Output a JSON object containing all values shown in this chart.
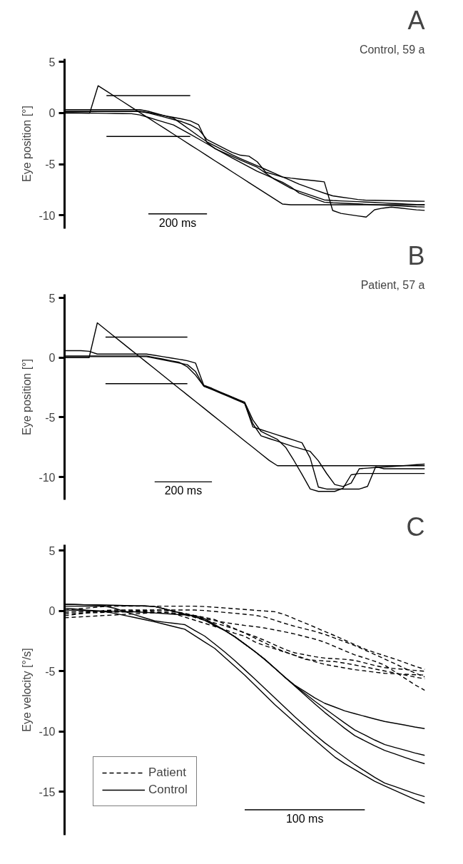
{
  "chart_data": [
    {
      "type": "line",
      "title": "A",
      "subtitle": "Control, 59 a",
      "ylabel": "Eye position [°]",
      "ylim": [
        -11.3,
        5.3
      ],
      "yticks": [
        5,
        0,
        -5,
        -10
      ],
      "tick_labels": "y",
      "grid": false,
      "legend": false,
      "line_style": "solid",
      "categories": [
        null,
        null,
        null,
        null,
        null,
        null,
        null,
        null,
        null,
        null,
        null,
        null,
        null,
        null,
        null,
        null,
        null,
        null,
        null,
        null,
        null,
        null,
        null,
        null,
        null,
        null,
        null,
        null,
        null,
        null,
        null,
        null,
        null,
        null,
        null,
        null,
        null,
        null,
        null,
        null,
        null,
        null,
        null,
        null
      ],
      "annotations": [
        "200 ms"
      ],
      "series": [
        {
          "color": "#000000",
          "values": [
            null,
            null,
            null,
            null,
            null,
            null,
            null,
            null,
            null,
            null,
            -9.85,
            -9.85,
            -9.85,
            -9.85,
            -9.85,
            -9.85,
            -9.85,
            -9.85,
            null,
            null,
            null,
            null,
            null,
            null,
            null,
            null,
            null,
            null,
            null,
            null,
            null,
            null,
            null,
            null,
            null,
            null,
            null,
            null,
            null,
            null,
            null,
            null,
            null,
            null
          ]
        },
        {
          "color": "#000000",
          "values": [
            null,
            null,
            null,
            null,
            null,
            1.71,
            1.71,
            1.71,
            1.71,
            1.71,
            1.71,
            1.71,
            1.71,
            1.71,
            1.71,
            1.71,
            null,
            null,
            null,
            null,
            null,
            null,
            null,
            null,
            null,
            null,
            null,
            null,
            null,
            null,
            null,
            null,
            null,
            null,
            null,
            null,
            null,
            null,
            null,
            null,
            null,
            null,
            null,
            null
          ]
        },
        {
          "color": "#000000",
          "values": [
            null,
            null,
            null,
            null,
            null,
            -2.29,
            -2.29,
            -2.29,
            -2.29,
            -2.29,
            -2.29,
            -2.29,
            -2.29,
            -2.29,
            -2.29,
            -2.29,
            null,
            null,
            null,
            null,
            null,
            null,
            null,
            null,
            null,
            null,
            null,
            null,
            null,
            null,
            null,
            null,
            null,
            null,
            null,
            null,
            null,
            null,
            null,
            null,
            null,
            null,
            null,
            null
          ]
        },
        {
          "color": "#000000",
          "values": [
            0,
            0,
            0,
            0,
            2.67,
            2.15,
            1.62,
            1.1,
            0.57,
            0.04,
            -0.48,
            -1.01,
            -1.53,
            -2.06,
            -2.58,
            -3.11,
            -3.63,
            -4.16,
            -4.69,
            -5.21,
            -5.74,
            -6.26,
            -6.79,
            -7.31,
            -7.84,
            -8.36,
            -8.89,
            -8.96,
            -8.96,
            -8.96,
            -8.96,
            -8.96,
            -8.96,
            -8.96,
            -8.96,
            -8.96,
            -8.96,
            -8.96,
            -8.96,
            -8.96,
            -8.96,
            -8.96,
            -8.96,
            -8.96
          ]
        },
        {
          "color": "#000000",
          "values": [
            0.33,
            0.33,
            0.33,
            0.33,
            0.33,
            0.33,
            0.33,
            0.33,
            0.33,
            0.33,
            0.17,
            -0.05,
            -0.27,
            -0.5,
            -1.07,
            -1.66,
            -2.25,
            -2.81,
            -3.23,
            -3.65,
            -4.07,
            -4.45,
            -4.81,
            -5.16,
            -5.51,
            -5.87,
            -6.23,
            -6.59,
            -6.95,
            -7.24,
            -7.54,
            -7.83,
            -8.09,
            -8.21,
            -8.33,
            -8.45,
            -8.52,
            -8.53,
            -8.55,
            -8.56,
            -8.58,
            -8.6,
            -8.61,
            -8.62
          ]
        },
        {
          "color": "#000000",
          "values": [
            0.16,
            0.16,
            0.16,
            0.16,
            0.16,
            0.16,
            0.16,
            0.16,
            0.16,
            0.16,
            0.01,
            -0.2,
            -0.41,
            -0.63,
            -0.84,
            -1.15,
            -1.59,
            -2.59,
            -3.01,
            -3.43,
            -3.85,
            -4.12,
            -4.21,
            -4.76,
            -5.77,
            -6.01,
            -6.25,
            -6.36,
            -6.45,
            -6.54,
            -6.63,
            -6.72,
            -9.52,
            -9.81,
            -9.93,
            -10.05,
            -10.17,
            -9.45,
            -9.29,
            -9.19,
            -9.28,
            -9.37,
            -9.46,
            -9.51
          ]
        },
        {
          "color": "#000000",
          "values": [
            0.04,
            0.03,
            0.02,
            0.0,
            -0.01,
            -0.03,
            -0.04,
            -0.05,
            -0.06,
            -0.18,
            -0.42,
            -0.67,
            -0.92,
            -1.16,
            -1.61,
            -2.07,
            -2.53,
            -3.0,
            -3.48,
            -3.93,
            -4.38,
            -4.82,
            -5.26,
            -5.69,
            -6.05,
            -6.41,
            -6.76,
            -7.22,
            -7.82,
            -8.12,
            -8.42,
            -8.71,
            -8.77,
            -8.81,
            -8.84,
            -8.88,
            -8.92,
            -8.96,
            -9.0,
            -9.04,
            -9.08,
            -9.12,
            -9.16,
            -9.18
          ]
        },
        {
          "color": "#000000",
          "values": [
            0.16,
            0.16,
            0.16,
            0.16,
            0.16,
            0.16,
            0.16,
            0.16,
            0.16,
            0.16,
            0.05,
            -0.11,
            -0.27,
            -0.42,
            -0.58,
            -0.76,
            -1.15,
            -2.88,
            -3.5,
            -3.87,
            -4.23,
            -4.59,
            -4.95,
            -5.3,
            -5.87,
            -6.44,
            -6.9,
            -7.35,
            -7.65,
            -7.93,
            -8.21,
            -8.49,
            -8.55,
            -8.59,
            -8.62,
            -8.66,
            -8.7,
            -8.74,
            -8.78,
            -8.82,
            -8.86,
            -8.9,
            -8.94,
            -8.96
          ]
        }
      ]
    },
    {
      "type": "line",
      "title": "B",
      "subtitle": "Patient, 57 a",
      "ylabel": "Eye position [°]",
      "ylim": [
        -11.9,
        5.3
      ],
      "yticks": [
        5,
        0,
        -5,
        -10
      ],
      "tick_labels": "y",
      "grid": false,
      "legend": false,
      "line_style": "solid",
      "categories": [
        null,
        null,
        null,
        null,
        null,
        null,
        null,
        null,
        null,
        null,
        null,
        null,
        null,
        null,
        null,
        null,
        null,
        null,
        null,
        null,
        null,
        null,
        null,
        null,
        null,
        null,
        null,
        null,
        null,
        null,
        null,
        null,
        null,
        null,
        null,
        null,
        null,
        null,
        null,
        null,
        null,
        null,
        null,
        null,
        null
      ],
      "annotations": [
        "200 ms"
      ],
      "series": [
        {
          "color": "#000000",
          "values": [
            null,
            null,
            null,
            null,
            null,
            null,
            null,
            null,
            null,
            null,
            null,
            -10.4,
            -10.4,
            -10.4,
            -10.4,
            -10.4,
            -10.4,
            -10.4,
            -10.4,
            null,
            null,
            null,
            null,
            null,
            null,
            null,
            null,
            null,
            null,
            null,
            null,
            null,
            null,
            null,
            null,
            null,
            null,
            null,
            null,
            null,
            null,
            null,
            null,
            null,
            null
          ]
        },
        {
          "color": "#000000",
          "values": [
            null,
            null,
            null,
            null,
            null,
            1.72,
            1.72,
            1.72,
            1.72,
            1.72,
            1.72,
            1.72,
            1.72,
            1.72,
            1.72,
            1.72,
            null,
            null,
            null,
            null,
            null,
            null,
            null,
            null,
            null,
            null,
            null,
            null,
            null,
            null,
            null,
            null,
            null,
            null,
            null,
            null,
            null,
            null,
            null,
            null,
            null,
            null,
            null,
            null,
            null
          ]
        },
        {
          "color": "#000000",
          "values": [
            null,
            null,
            null,
            null,
            null,
            -2.18,
            -2.18,
            -2.18,
            -2.18,
            -2.18,
            -2.18,
            -2.18,
            -2.18,
            -2.18,
            -2.18,
            -2.18,
            null,
            null,
            null,
            null,
            null,
            null,
            null,
            null,
            null,
            null,
            null,
            null,
            null,
            null,
            null,
            null,
            null,
            null,
            null,
            null,
            null,
            null,
            null,
            null,
            null,
            null,
            null,
            null,
            null
          ]
        },
        {
          "color": "#000000",
          "values": [
            0,
            0,
            0,
            0,
            2.91,
            2.36,
            1.81,
            1.26,
            0.71,
            0.16,
            -0.38,
            -0.93,
            -1.48,
            -2.03,
            -2.58,
            -3.13,
            -3.67,
            -4.22,
            -4.77,
            -5.32,
            -5.87,
            -6.42,
            -6.97,
            -7.51,
            -8.06,
            -8.61,
            -9.05,
            -9.05,
            -9.05,
            -9.05,
            -9.05,
            -9.05,
            -9.05,
            -9.05,
            -9.05,
            -9.05,
            -9.05,
            -9.05,
            -9.05,
            -9.05,
            -9.05,
            -9.05,
            -9.05,
            -9.05,
            -9.05
          ]
        },
        {
          "color": "#000000",
          "values": [
            0.58,
            0.58,
            0.58,
            0.53,
            0.3,
            0.3,
            0.3,
            0.3,
            0.3,
            0.3,
            0.3,
            0.19,
            0.08,
            -0.03,
            -0.14,
            -0.26,
            -0.46,
            -2.31,
            -2.57,
            -2.87,
            -3.16,
            -3.46,
            -3.84,
            -5.8,
            -6.03,
            -6.25,
            -6.47,
            -6.69,
            -6.91,
            -7.13,
            -8.4,
            -10.84,
            -11.0,
            -11.0,
            -11.0,
            -11.0,
            -11.0,
            -10.78,
            -9.13,
            -9.3,
            -9.3,
            -9.3,
            -9.3,
            -9.3,
            -9.3
          ]
        },
        {
          "color": "#000000",
          "values": [
            0.08,
            0.08,
            0.08,
            0.08,
            0.08,
            0.08,
            0.08,
            0.08,
            0.08,
            0.08,
            0.08,
            -0.05,
            -0.18,
            -0.32,
            -0.45,
            -0.59,
            -1.17,
            -2.39,
            -2.67,
            -2.96,
            -3.25,
            -3.54,
            -3.83,
            -5.54,
            -6.55,
            -6.78,
            -7.0,
            -7.23,
            -7.46,
            -7.65,
            -7.85,
            -8.64,
            -9.69,
            -10.62,
            -10.79,
            -10.5,
            -9.3,
            -9.25,
            -9.2,
            -9.15,
            -9.11,
            -9.06,
            -9.01,
            -8.96,
            -8.91
          ]
        },
        {
          "color": "#000000",
          "values": [
            0.14,
            0.14,
            0.14,
            0.14,
            0.14,
            0.14,
            0.14,
            0.14,
            0.14,
            0.14,
            0.14,
            0.01,
            -0.12,
            -0.26,
            -0.39,
            -0.77,
            -1.47,
            -2.38,
            -2.65,
            -2.92,
            -3.19,
            -3.46,
            -3.73,
            -5.22,
            -6.18,
            -6.52,
            -6.85,
            -7.51,
            -8.6,
            -9.77,
            -11.0,
            -11.2,
            -11.2,
            -11.2,
            -10.94,
            -9.81,
            -9.7,
            -9.7,
            -9.7,
            -9.7,
            -9.7,
            -9.7,
            -9.7,
            -9.7,
            -9.7
          ]
        }
      ]
    },
    {
      "type": "line",
      "title": "C",
      "ylabel": "Eye velocity [°/s]",
      "ylim": [
        -18.6,
        5.5
      ],
      "yticks": [
        5,
        0,
        -5,
        -10,
        -15
      ],
      "tick_labels": "y",
      "grid": false,
      "legend": "bottom left",
      "categories": [
        null,
        null,
        null,
        null,
        null,
        null,
        null,
        null,
        null,
        null,
        null,
        null,
        null,
        null,
        null,
        null,
        null,
        null,
        null,
        null,
        null,
        null,
        null,
        null,
        null,
        null,
        null,
        null,
        null,
        null,
        null,
        null,
        null,
        null,
        null,
        null,
        null
      ],
      "annotations": [
        "100 ms"
      ],
      "series": [
        {
          "color": "#000000",
          "line_style": "solid",
          "values": [
            null,
            null,
            null,
            null,
            null,
            null,
            null,
            null,
            null,
            null,
            null,
            null,
            null,
            null,
            null,
            null,
            null,
            null,
            -16.5,
            -16.5,
            -16.5,
            -16.5,
            -16.5,
            -16.5,
            -16.5,
            -16.5,
            -16.5,
            -16.5,
            -16.5,
            -16.5,
            -16.5,
            null,
            null,
            null,
            null,
            null,
            null
          ]
        },
        {
          "name": "Patient",
          "color": "#000000",
          "line_style": "dashed",
          "values": [
            0.08,
            0.15,
            0.23,
            0.3,
            0.37,
            0.4,
            0.4,
            0.4,
            0.4,
            0.4,
            0.4,
            0.4,
            0.4,
            0.4,
            0.37,
            0.31,
            0.25,
            0.19,
            0.13,
            0.06,
            0.0,
            -0.06,
            -0.3,
            -0.65,
            -0.99,
            -1.34,
            -1.7,
            -2.05,
            -2.42,
            -2.79,
            -3.16,
            -3.45,
            -3.72,
            -3.98,
            -4.28,
            -4.58,
            -4.84
          ]
        },
        {
          "color": "#000000",
          "line_style": "dashed",
          "values": [
            -0.4,
            -0.29,
            -0.18,
            -0.07,
            0.04,
            0.08,
            0.08,
            0.08,
            0.08,
            0.08,
            0.08,
            0.08,
            0.08,
            0.08,
            0.04,
            -0.04,
            -0.12,
            -0.19,
            -0.27,
            -0.35,
            -0.5,
            -0.76,
            -1.03,
            -1.27,
            -1.48,
            -1.69,
            -1.94,
            -2.25,
            -2.55,
            -2.87,
            -3.24,
            -3.61,
            -3.99,
            -4.37,
            -4.76,
            -5.14,
            -5.48
          ]
        },
        {
          "color": "#000000",
          "line_style": "dashed",
          "values": [
            -0.08,
            -0.08,
            -0.08,
            -0.08,
            -0.08,
            -0.08,
            -0.08,
            -0.08,
            -0.08,
            -0.08,
            -0.08,
            -0.18,
            -0.33,
            -0.49,
            -0.64,
            -0.8,
            -0.95,
            -1.08,
            -1.2,
            -1.29,
            -1.41,
            -1.57,
            -1.73,
            -1.91,
            -2.12,
            -2.33,
            -2.59,
            -2.95,
            -3.3,
            -3.64,
            -3.9,
            -4.17,
            -4.5,
            -5.04,
            -5.58,
            -6.12,
            -6.59
          ]
        },
        {
          "color": "#000000",
          "line_style": "dashed",
          "values": [
            -0.24,
            -0.21,
            -0.18,
            -0.15,
            -0.12,
            -0.07,
            -0.05,
            -0.02,
            0.01,
            0.04,
            0.07,
            -0.03,
            -0.2,
            -0.37,
            -0.54,
            -0.71,
            -1.08,
            -1.46,
            -1.83,
            -2.24,
            -2.64,
            -3.05,
            -3.38,
            -3.69,
            -4.01,
            -4.09,
            -4.15,
            -4.2,
            -4.33,
            -4.48,
            -4.64,
            -4.81,
            -4.98,
            -5.14,
            -5.31,
            -5.48,
            -5.63
          ]
        },
        {
          "color": "#000000",
          "line_style": "dashed",
          "values": [
            -0.56,
            -0.51,
            -0.47,
            -0.42,
            -0.37,
            -0.33,
            -0.28,
            -0.24,
            -0.19,
            -0.14,
            -0.1,
            -0.24,
            -0.5,
            -0.76,
            -1.02,
            -1.28,
            -1.54,
            -1.85,
            -2.09,
            -2.56,
            -2.88,
            -3.14,
            -3.41,
            -3.67,
            -3.94,
            -4.2,
            -4.43,
            -4.58,
            -4.73,
            -4.87,
            -4.97,
            -5.08,
            -5.17,
            -5.21,
            -5.25,
            -5.29,
            -5.32
          ]
        },
        {
          "color": "#000000",
          "line_style": "dashed",
          "values": [
            -0.08,
            -0.06,
            -0.05,
            -0.03,
            -0.01,
            0.0,
            0.01,
            0.03,
            0.04,
            0.06,
            0.07,
            -0.07,
            -0.3,
            -0.53,
            -0.77,
            -1.0,
            -1.23,
            -1.5,
            -1.81,
            -2.11,
            -2.44,
            -2.81,
            -3.18,
            -3.47,
            -3.63,
            -3.79,
            -3.91,
            -3.96,
            -4.01,
            -4.1,
            -4.31,
            -4.52,
            -4.7,
            -4.78,
            -4.85,
            -4.93,
            -5.0
          ]
        },
        {
          "name": "Control",
          "color": "#000000",
          "line_style": "solid",
          "values": [
            0.24,
            0.17,
            0.09,
            0.02,
            -0.05,
            -0.19,
            -0.37,
            -0.54,
            -0.72,
            -0.9,
            -1.1,
            -1.31,
            -1.51,
            -2.04,
            -2.57,
            -3.1,
            -3.84,
            -4.58,
            -5.32,
            -6.13,
            -6.95,
            -7.76,
            -8.51,
            -9.25,
            -9.99,
            -10.7,
            -11.41,
            -12.12,
            -12.67,
            -13.16,
            -13.65,
            -14.14,
            -14.52,
            -14.89,
            -15.26,
            -15.63,
            -15.95
          ]
        },
        {
          "color": "#000000",
          "line_style": "solid",
          "values": [
            0.4,
            0.4,
            0.4,
            0.4,
            0.4,
            0.23,
            -0.04,
            -0.31,
            -0.57,
            -0.82,
            -0.93,
            -1.03,
            -1.13,
            -1.61,
            -2.08,
            -2.73,
            -3.4,
            -4.11,
            -4.87,
            -5.63,
            -6.41,
            -7.2,
            -7.99,
            -8.77,
            -9.51,
            -10.25,
            -10.94,
            -11.55,
            -12.16,
            -12.75,
            -13.28,
            -13.81,
            -14.28,
            -14.57,
            -14.86,
            -15.16,
            -15.41
          ]
        },
        {
          "color": "#000000",
          "line_style": "solid",
          "values": [
            0.08,
            0.06,
            0.04,
            0.01,
            -0.01,
            -0.03,
            -0.05,
            -0.07,
            -0.11,
            -0.16,
            -0.21,
            -0.27,
            -0.32,
            -0.37,
            -0.64,
            -1.12,
            -1.59,
            -2.13,
            -2.74,
            -3.35,
            -4.01,
            -4.75,
            -5.49,
            -6.15,
            -6.68,
            -7.21,
            -7.66,
            -7.97,
            -8.29,
            -8.52,
            -8.74,
            -8.96,
            -9.17,
            -9.32,
            -9.47,
            -9.63,
            -9.76
          ]
        },
        {
          "color": "#000000",
          "line_style": "solid",
          "values": [
            0.56,
            0.54,
            0.52,
            0.51,
            0.49,
            0.47,
            0.45,
            0.43,
            0.42,
            0.37,
            0.17,
            -0.04,
            -0.25,
            -0.46,
            -0.77,
            -1.2,
            -1.62,
            -2.13,
            -2.74,
            -3.35,
            -4.01,
            -4.75,
            -5.49,
            -6.19,
            -6.83,
            -7.48,
            -8.09,
            -8.7,
            -9.3,
            -9.87,
            -10.29,
            -10.71,
            -11.09,
            -11.32,
            -11.55,
            -11.78,
            -11.98
          ]
        },
        {
          "color": "#000000",
          "line_style": "solid",
          "values": [
            0.56,
            0.54,
            0.52,
            0.51,
            0.49,
            0.47,
            0.45,
            0.43,
            0.42,
            0.37,
            0.17,
            -0.04,
            -0.25,
            -0.46,
            -0.77,
            -1.2,
            -1.62,
            -2.13,
            -2.74,
            -3.35,
            -4.01,
            -4.75,
            -5.49,
            -6.23,
            -6.97,
            -7.71,
            -8.42,
            -9.08,
            -9.74,
            -10.35,
            -10.77,
            -11.19,
            -11.58,
            -11.86,
            -12.15,
            -12.43,
            -12.68
          ]
        }
      ]
    }
  ]
}
